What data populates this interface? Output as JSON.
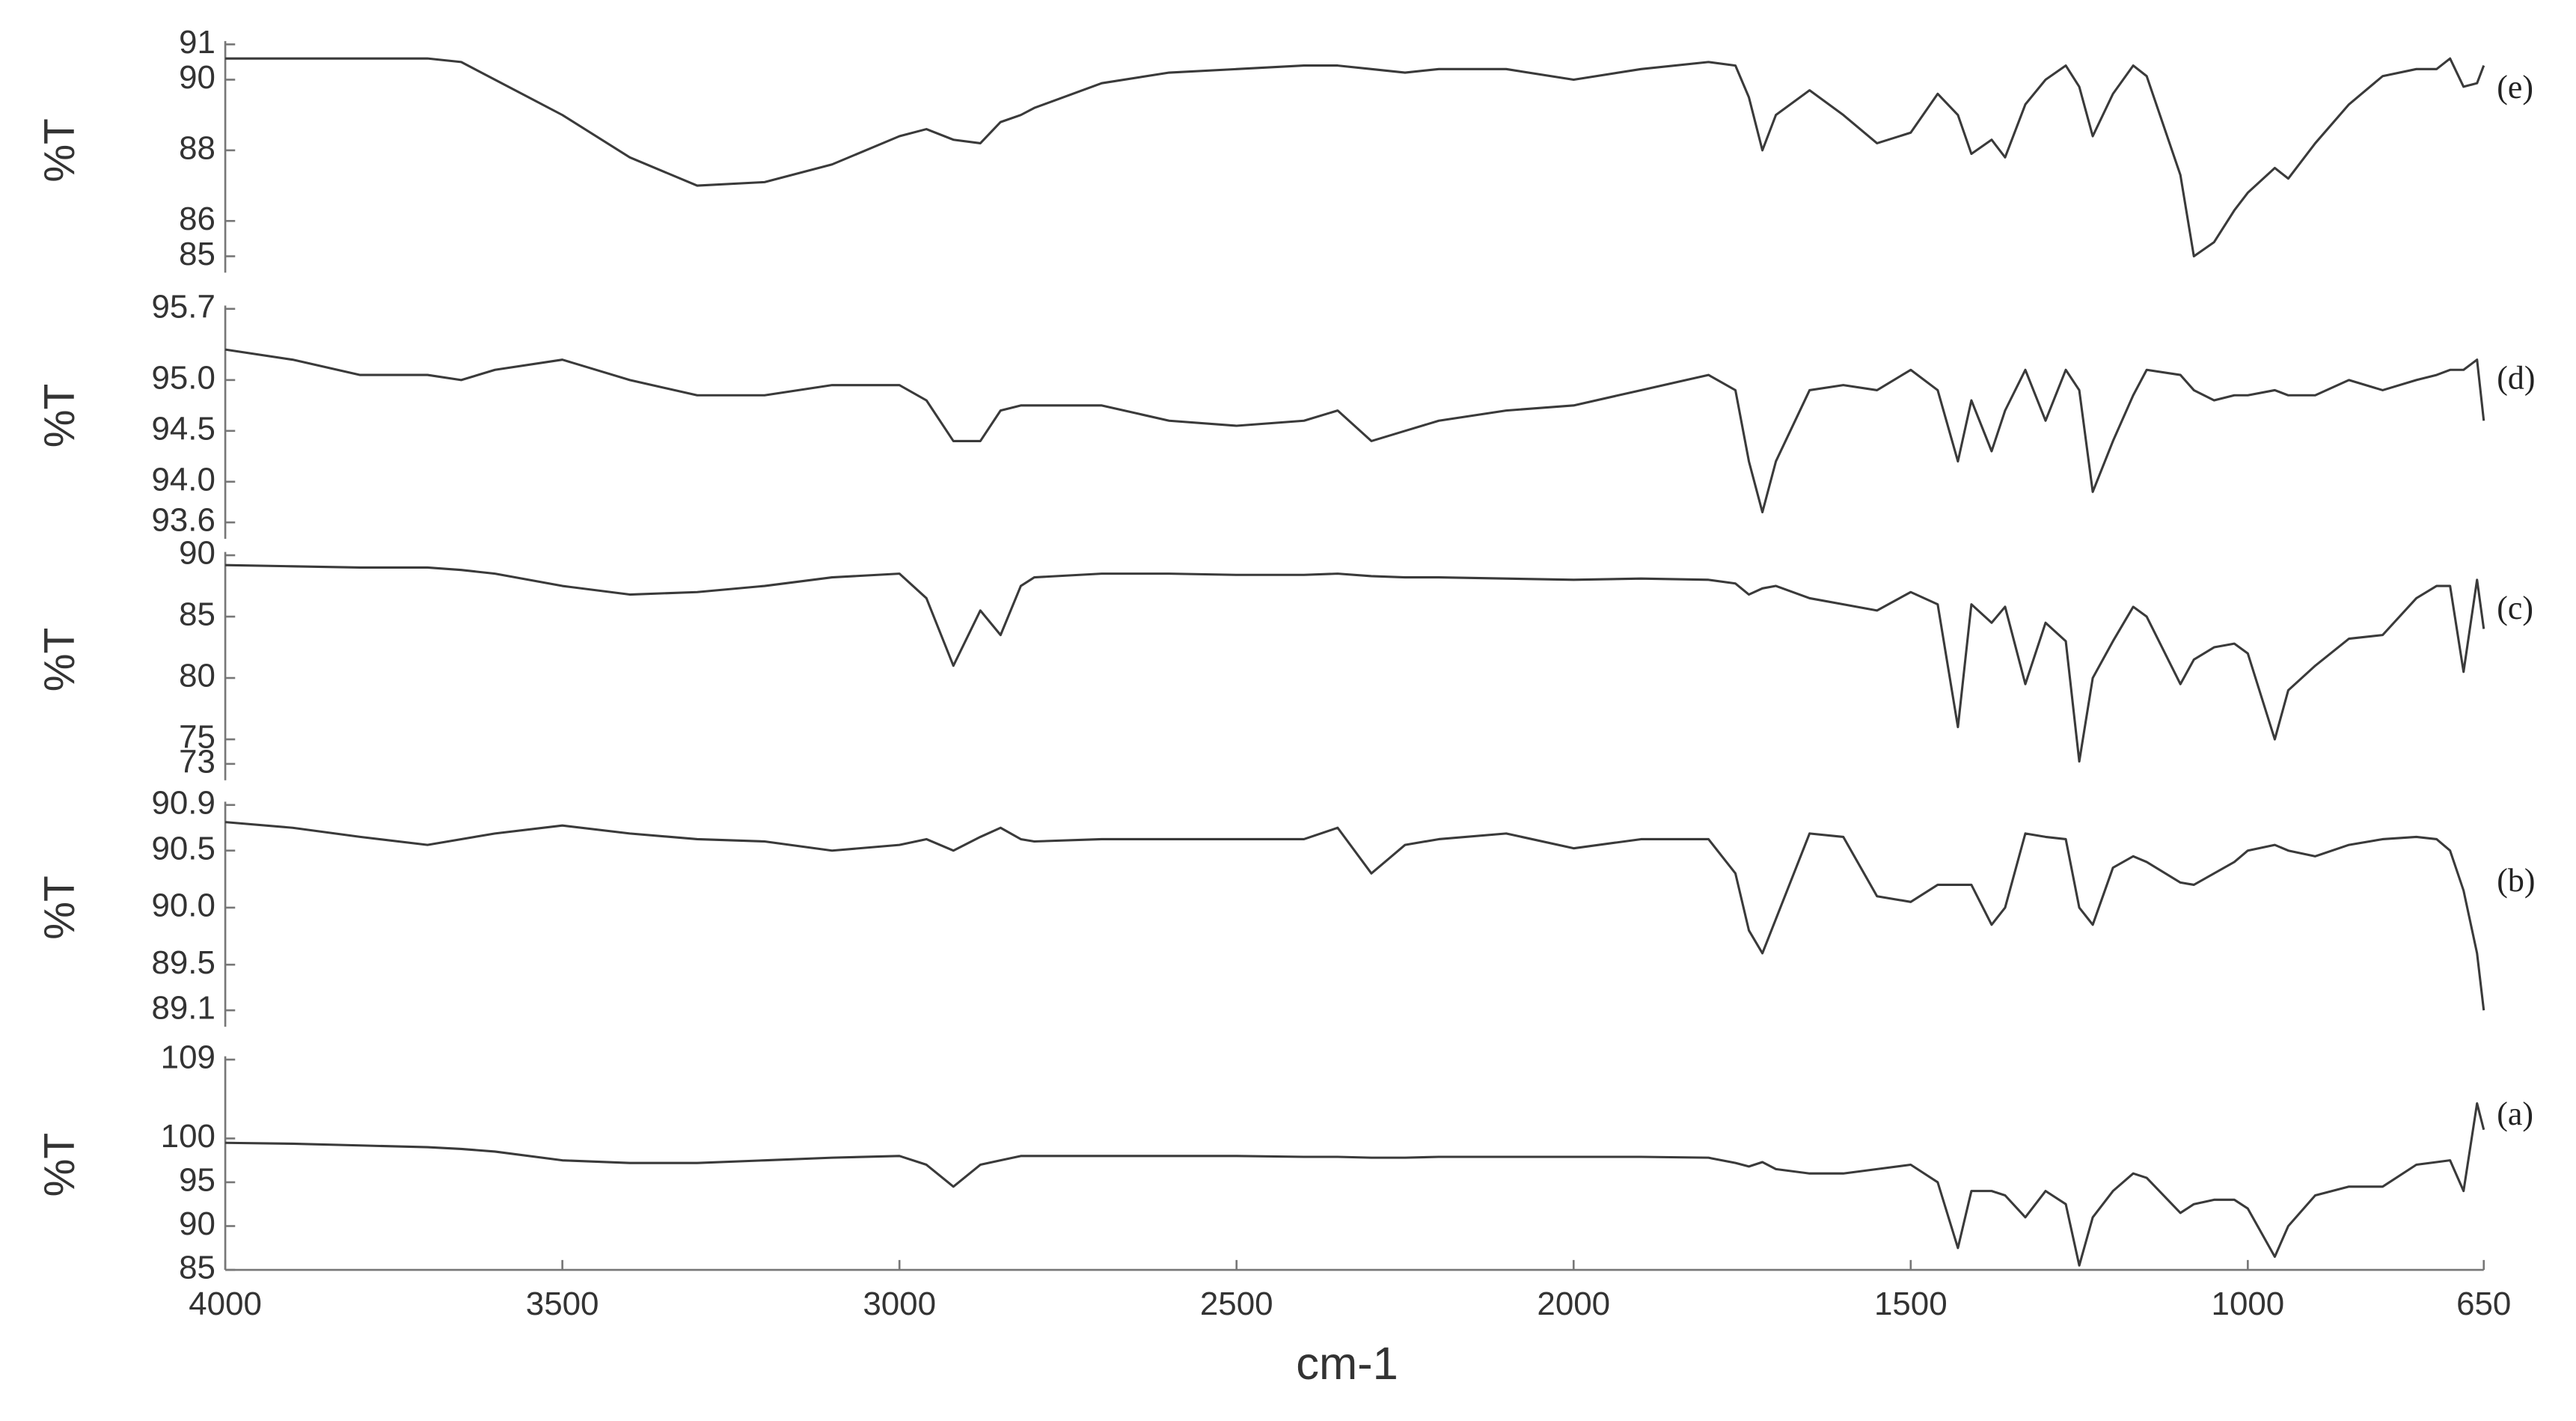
{
  "chart_data": [
    {
      "type": "line",
      "label": "(e)",
      "y_label": "%T",
      "color": "#3a3a3a",
      "xlim": [
        4000,
        650
      ],
      "ylim": [
        85,
        91
      ],
      "yticks": [
        91,
        90,
        88,
        86,
        85
      ],
      "x": [
        4000,
        3900,
        3800,
        3700,
        3650,
        3600,
        3500,
        3400,
        3300,
        3200,
        3100,
        3000,
        2960,
        2920,
        2880,
        2850,
        2820,
        2800,
        2700,
        2600,
        2500,
        2400,
        2350,
        2300,
        2250,
        2200,
        2100,
        2000,
        1900,
        1800,
        1760,
        1740,
        1720,
        1700,
        1650,
        1600,
        1550,
        1500,
        1460,
        1430,
        1410,
        1380,
        1360,
        1330,
        1300,
        1270,
        1250,
        1230,
        1200,
        1170,
        1150,
        1100,
        1080,
        1050,
        1020,
        1000,
        960,
        940,
        900,
        850,
        800,
        750,
        720,
        700,
        680,
        660,
        650
      ],
      "values": [
        90.6,
        90.6,
        90.6,
        90.6,
        90.5,
        90.0,
        89.0,
        87.8,
        87.0,
        87.1,
        87.6,
        88.4,
        88.6,
        88.3,
        88.2,
        88.8,
        89.0,
        89.2,
        89.9,
        90.2,
        90.3,
        90.4,
        90.4,
        90.3,
        90.2,
        90.3,
        90.3,
        90.0,
        90.3,
        90.5,
        90.4,
        89.5,
        88.0,
        89.0,
        89.7,
        89.0,
        88.2,
        88.5,
        89.6,
        89.0,
        87.9,
        88.3,
        87.8,
        89.3,
        90.0,
        90.4,
        89.8,
        88.4,
        89.6,
        90.4,
        90.1,
        87.3,
        85.0,
        85.4,
        86.3,
        86.8,
        87.5,
        87.2,
        88.2,
        89.3,
        90.1,
        90.3,
        90.3,
        90.6,
        89.8,
        89.9,
        90.4
      ]
    },
    {
      "type": "line",
      "label": "(d)",
      "y_label": "%T",
      "color": "#3a3a3a",
      "xlim": [
        4000,
        650
      ],
      "ylim": [
        93.6,
        95.7
      ],
      "yticks": [
        95.7,
        {
          "value": 95,
          "label": "95.0"
        },
        94.5,
        {
          "value": 94,
          "label": "94.0"
        },
        93.6
      ],
      "x": [
        4000,
        3900,
        3800,
        3700,
        3650,
        3600,
        3500,
        3400,
        3300,
        3200,
        3100,
        3000,
        2960,
        2920,
        2880,
        2850,
        2820,
        2800,
        2700,
        2600,
        2500,
        2400,
        2350,
        2300,
        2250,
        2200,
        2100,
        2000,
        1900,
        1800,
        1760,
        1740,
        1720,
        1700,
        1650,
        1600,
        1550,
        1500,
        1460,
        1430,
        1410,
        1380,
        1360,
        1330,
        1300,
        1270,
        1250,
        1230,
        1200,
        1170,
        1150,
        1100,
        1080,
        1050,
        1020,
        1000,
        960,
        940,
        900,
        850,
        800,
        750,
        720,
        700,
        680,
        660,
        650
      ],
      "values": [
        95.3,
        95.2,
        95.05,
        95.05,
        95.0,
        95.1,
        95.2,
        95.0,
        94.85,
        94.85,
        94.95,
        94.95,
        94.8,
        94.4,
        94.4,
        94.7,
        94.75,
        94.75,
        94.75,
        94.6,
        94.55,
        94.6,
        94.7,
        94.4,
        94.5,
        94.6,
        94.7,
        94.75,
        94.9,
        95.05,
        94.9,
        94.2,
        93.7,
        94.2,
        94.9,
        94.95,
        94.9,
        95.1,
        94.9,
        94.2,
        94.8,
        94.3,
        94.7,
        95.1,
        94.6,
        95.1,
        94.9,
        93.9,
        94.4,
        94.85,
        95.1,
        95.05,
        94.9,
        94.8,
        94.85,
        94.85,
        94.9,
        94.85,
        94.85,
        95.0,
        94.9,
        95.0,
        95.05,
        95.1,
        95.1,
        95.2,
        94.6
      ]
    },
    {
      "type": "line",
      "label": "(c)",
      "y_label": "%T",
      "color": "#3a3a3a",
      "xlim": [
        4000,
        650
      ],
      "ylim": [
        73,
        90
      ],
      "yticks": [
        90,
        85,
        80,
        75,
        73
      ],
      "x": [
        4000,
        3900,
        3800,
        3700,
        3650,
        3600,
        3500,
        3400,
        3300,
        3200,
        3100,
        3000,
        2960,
        2920,
        2880,
        2850,
        2820,
        2800,
        2700,
        2600,
        2500,
        2400,
        2350,
        2300,
        2250,
        2200,
        2100,
        2000,
        1900,
        1800,
        1760,
        1740,
        1720,
        1700,
        1650,
        1600,
        1550,
        1500,
        1460,
        1430,
        1410,
        1380,
        1360,
        1330,
        1300,
        1270,
        1250,
        1230,
        1200,
        1170,
        1150,
        1100,
        1080,
        1050,
        1020,
        1000,
        960,
        940,
        900,
        850,
        800,
        750,
        720,
        700,
        680,
        660,
        650
      ],
      "values": [
        89.2,
        89.1,
        89.0,
        89.0,
        88.8,
        88.5,
        87.5,
        86.8,
        87.0,
        87.5,
        88.2,
        88.5,
        86.5,
        81.0,
        85.5,
        83.5,
        87.5,
        88.2,
        88.5,
        88.5,
        88.4,
        88.4,
        88.5,
        88.3,
        88.2,
        88.2,
        88.1,
        88.0,
        88.1,
        88.0,
        87.7,
        86.8,
        87.3,
        87.5,
        86.5,
        86.0,
        85.5,
        87.0,
        86.0,
        76.0,
        86.0,
        84.5,
        85.8,
        79.5,
        84.5,
        83.0,
        73.2,
        80.0,
        83.0,
        85.8,
        85.0,
        79.5,
        81.5,
        82.5,
        82.8,
        82.0,
        75.0,
        79.0,
        81.0,
        83.2,
        83.5,
        86.5,
        87.5,
        87.5,
        80.5,
        88.0,
        84.0
      ]
    },
    {
      "type": "line",
      "label": "(b)",
      "y_label": "%T",
      "color": "#3a3a3a",
      "xlim": [
        4000,
        650
      ],
      "ylim": [
        89.1,
        90.9
      ],
      "yticks": [
        90.9,
        90.5,
        {
          "value": 90,
          "label": "90.0"
        },
        89.5,
        89.1
      ],
      "x": [
        4000,
        3900,
        3800,
        3700,
        3650,
        3600,
        3500,
        3400,
        3300,
        3200,
        3100,
        3000,
        2960,
        2920,
        2880,
        2850,
        2820,
        2800,
        2700,
        2600,
        2500,
        2400,
        2350,
        2300,
        2250,
        2200,
        2100,
        2000,
        1900,
        1800,
        1760,
        1740,
        1720,
        1700,
        1650,
        1600,
        1550,
        1500,
        1460,
        1430,
        1410,
        1380,
        1360,
        1330,
        1300,
        1270,
        1250,
        1230,
        1200,
        1170,
        1150,
        1100,
        1080,
        1050,
        1020,
        1000,
        960,
        940,
        900,
        850,
        800,
        750,
        720,
        700,
        680,
        660,
        650
      ],
      "values": [
        90.75,
        90.7,
        90.62,
        90.55,
        90.6,
        90.65,
        90.72,
        90.65,
        90.6,
        90.58,
        90.5,
        90.55,
        90.6,
        90.5,
        90.62,
        90.7,
        90.6,
        90.58,
        90.6,
        90.6,
        90.6,
        90.6,
        90.7,
        90.3,
        90.55,
        90.6,
        90.65,
        90.52,
        90.6,
        90.6,
        90.3,
        89.8,
        89.6,
        89.9,
        90.65,
        90.62,
        90.1,
        90.05,
        90.2,
        90.2,
        90.2,
        89.85,
        90.0,
        90.65,
        90.62,
        90.6,
        90.0,
        89.85,
        90.35,
        90.45,
        90.4,
        90.22,
        90.2,
        90.3,
        90.4,
        90.5,
        90.55,
        90.5,
        90.45,
        90.55,
        90.6,
        90.62,
        90.6,
        90.5,
        90.15,
        89.6,
        89.1
      ]
    },
    {
      "type": "line",
      "label": "(a)",
      "y_label": "%T",
      "color": "#3a3a3a",
      "xlim": [
        4000,
        650
      ],
      "ylim": [
        85,
        109
      ],
      "yticks": [
        109,
        100,
        95,
        90,
        85
      ],
      "xticks": [
        4000,
        3500,
        3000,
        2500,
        2000,
        1500,
        1000,
        650
      ],
      "x_label": "cm-1",
      "x": [
        4000,
        3900,
        3800,
        3700,
        3650,
        3600,
        3500,
        3400,
        3300,
        3200,
        3100,
        3000,
        2960,
        2920,
        2880,
        2850,
        2820,
        2800,
        2700,
        2600,
        2500,
        2400,
        2350,
        2300,
        2250,
        2200,
        2100,
        2000,
        1900,
        1800,
        1760,
        1740,
        1720,
        1700,
        1650,
        1600,
        1550,
        1500,
        1460,
        1430,
        1410,
        1380,
        1360,
        1330,
        1300,
        1270,
        1250,
        1230,
        1200,
        1170,
        1150,
        1100,
        1080,
        1050,
        1020,
        1000,
        960,
        940,
        900,
        850,
        800,
        750,
        720,
        700,
        680,
        660,
        650
      ],
      "values": [
        99.5,
        99.4,
        99.2,
        99.0,
        98.8,
        98.5,
        97.5,
        97.2,
        97.2,
        97.5,
        97.8,
        98.0,
        97.0,
        94.5,
        97.0,
        97.5,
        98.0,
        98.0,
        98.0,
        98.0,
        98.0,
        97.9,
        97.9,
        97.8,
        97.8,
        97.9,
        97.9,
        97.9,
        97.9,
        97.8,
        97.2,
        96.8,
        97.3,
        96.5,
        96.0,
        96.0,
        96.5,
        97.0,
        95.0,
        87.5,
        94.0,
        94.0,
        93.5,
        91.0,
        94.0,
        92.5,
        85.5,
        91.0,
        94.0,
        96.0,
        95.5,
        91.5,
        92.5,
        93.0,
        93.0,
        92.0,
        86.5,
        90.0,
        93.5,
        94.5,
        94.5,
        97.0,
        97.3,
        97.5,
        94.0,
        104.0,
        101.0
      ]
    }
  ]
}
